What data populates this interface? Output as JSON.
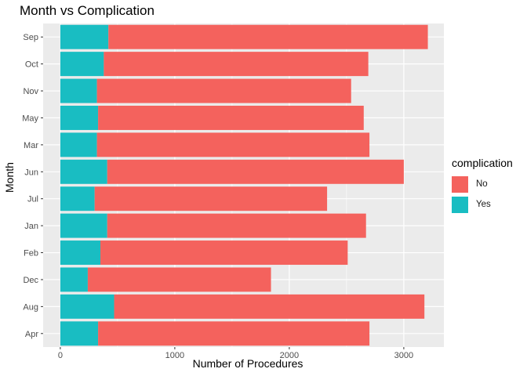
{
  "chart_data": {
    "type": "bar",
    "orientation": "horizontal",
    "stacked": true,
    "title": "Month vs Complication",
    "xlabel": "Number of Procedures",
    "ylabel": "Month",
    "categories": [
      "Apr",
      "Aug",
      "Dec",
      "Feb",
      "Jan",
      "Jul",
      "Jun",
      "Mar",
      "May",
      "Nov",
      "Oct",
      "Sep"
    ],
    "series": [
      {
        "name": "Yes",
        "color": "#19BDC2",
        "values": [
          330,
          470,
          240,
          350,
          410,
          300,
          410,
          320,
          330,
          320,
          380,
          420
        ]
      },
      {
        "name": "No",
        "color": "#F4625D",
        "values": [
          2370,
          2710,
          1600,
          2160,
          2260,
          2030,
          2590,
          2380,
          2320,
          2220,
          2310,
          2790
        ]
      }
    ],
    "xlim": [
      -150,
      3350
    ],
    "xticks": [
      0,
      1000,
      2000,
      3000
    ],
    "legend": {
      "title": "complication",
      "entries": [
        "No",
        "Yes"
      ],
      "position": "right"
    },
    "grid": true
  }
}
